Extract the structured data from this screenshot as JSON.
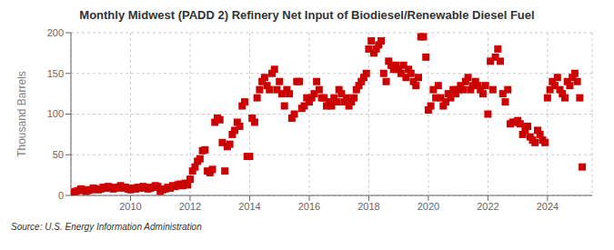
{
  "chart_data": {
    "type": "scatter",
    "title": "Monthly Midwest (PADD 2) Refinery Net Input of Biodiesel/Renewable Diesel Fuel",
    "ylabel": "Thousand Barrels",
    "annotations": [
      "Source: U.S. Energy Information Administration"
    ],
    "color": "#cc0000",
    "marker": "square",
    "grid": true,
    "xlim": [
      2008.0,
      2025.5
    ],
    "xticks": [
      2010,
      2012,
      2014,
      2016,
      2018,
      2020,
      2022,
      2024
    ],
    "ylim": [
      0,
      200
    ],
    "yticks": [
      0,
      50,
      100,
      150,
      200
    ],
    "x": [
      2008.0,
      2008.083,
      2008.167,
      2008.25,
      2008.333,
      2008.417,
      2008.5,
      2008.583,
      2008.667,
      2008.75,
      2008.833,
      2008.917,
      2009.0,
      2009.083,
      2009.167,
      2009.25,
      2009.333,
      2009.417,
      2009.5,
      2009.583,
      2009.667,
      2009.75,
      2009.833,
      2009.917,
      2010.0,
      2010.083,
      2010.167,
      2010.25,
      2010.333,
      2010.417,
      2010.5,
      2010.583,
      2010.667,
      2010.75,
      2010.833,
      2010.917,
      2011.0,
      2011.083,
      2011.167,
      2011.25,
      2011.333,
      2011.417,
      2011.5,
      2011.583,
      2011.667,
      2011.75,
      2011.833,
      2011.917,
      2012.0,
      2012.083,
      2012.167,
      2012.25,
      2012.333,
      2012.417,
      2012.5,
      2012.583,
      2012.667,
      2012.75,
      2012.833,
      2012.917,
      2013.0,
      2013.083,
      2013.167,
      2013.25,
      2013.333,
      2013.417,
      2013.5,
      2013.583,
      2013.667,
      2013.75,
      2013.833,
      2013.917,
      2014.0,
      2014.083,
      2014.167,
      2014.25,
      2014.333,
      2014.417,
      2014.5,
      2014.583,
      2014.667,
      2014.75,
      2014.833,
      2014.917,
      2015.0,
      2015.083,
      2015.167,
      2015.25,
      2015.333,
      2015.417,
      2015.5,
      2015.583,
      2015.667,
      2015.75,
      2015.833,
      2015.917,
      2016.0,
      2016.083,
      2016.167,
      2016.25,
      2016.333,
      2016.417,
      2016.5,
      2016.583,
      2016.667,
      2016.75,
      2016.833,
      2016.917,
      2017.0,
      2017.083,
      2017.167,
      2017.25,
      2017.333,
      2017.417,
      2017.5,
      2017.583,
      2017.667,
      2017.75,
      2017.833,
      2017.917,
      2018.0,
      2018.083,
      2018.167,
      2018.25,
      2018.333,
      2018.417,
      2018.5,
      2018.583,
      2018.667,
      2018.75,
      2018.833,
      2018.917,
      2019.0,
      2019.083,
      2019.167,
      2019.25,
      2019.333,
      2019.417,
      2019.5,
      2019.583,
      2019.667,
      2019.75,
      2019.833,
      2019.917,
      2020.0,
      2020.083,
      2020.167,
      2020.25,
      2020.333,
      2020.417,
      2020.5,
      2020.583,
      2020.667,
      2020.75,
      2020.833,
      2020.917,
      2021.0,
      2021.083,
      2021.167,
      2021.25,
      2021.333,
      2021.417,
      2021.5,
      2021.583,
      2021.667,
      2021.75,
      2021.833,
      2021.917,
      2022.0,
      2022.083,
      2022.167,
      2022.25,
      2022.333,
      2022.417,
      2022.5,
      2022.583,
      2022.667,
      2022.75,
      2022.833,
      2022.917,
      2023.0,
      2023.083,
      2023.167,
      2023.25,
      2023.333,
      2023.417,
      2023.5,
      2023.583,
      2023.667,
      2023.75,
      2023.833,
      2023.917,
      2024.0,
      2024.083,
      2024.167,
      2024.25,
      2024.333,
      2024.417,
      2024.5,
      2024.583,
      2024.667,
      2024.75,
      2024.833,
      2024.917,
      2025.0,
      2025.083,
      2025.167
    ],
    "values": [
      2,
      4,
      5,
      6,
      8,
      7,
      5,
      6,
      7,
      9,
      8,
      7,
      8,
      10,
      9,
      11,
      10,
      8,
      9,
      10,
      12,
      9,
      10,
      8,
      7,
      9,
      8,
      10,
      9,
      11,
      10,
      8,
      9,
      10,
      12,
      11,
      5,
      7,
      8,
      10,
      9,
      12,
      11,
      13,
      14,
      12,
      15,
      13,
      20,
      30,
      35,
      42,
      45,
      55,
      56,
      30,
      28,
      32,
      90,
      95,
      93,
      65,
      30,
      60,
      63,
      75,
      80,
      90,
      85,
      110,
      115,
      48,
      48,
      95,
      90,
      120,
      130,
      140,
      145,
      135,
      130,
      150,
      155,
      130,
      140,
      125,
      110,
      130,
      125,
      95,
      100,
      140,
      140,
      107,
      110,
      120,
      115,
      120,
      125,
      140,
      130,
      120,
      120,
      110,
      115,
      110,
      120,
      115,
      130,
      125,
      115,
      120,
      110,
      115,
      120,
      130,
      135,
      140,
      145,
      150,
      180,
      190,
      175,
      180,
      185,
      190,
      150,
      140,
      165,
      160,
      155,
      160,
      155,
      150,
      160,
      145,
      155,
      150,
      140,
      135,
      145,
      195,
      195,
      170,
      105,
      110,
      130,
      120,
      135,
      120,
      110,
      115,
      125,
      120,
      130,
      125,
      130,
      135,
      130,
      140,
      145,
      130,
      135,
      140,
      135,
      130,
      125,
      135,
      100,
      165,
      130,
      170,
      180,
      165,
      125,
      115,
      130,
      88,
      90,
      90,
      92,
      88,
      75,
      80,
      85,
      72,
      68,
      65,
      80,
      75,
      68,
      65,
      120,
      130,
      140,
      135,
      145,
      130,
      125,
      120,
      140,
      135,
      145,
      150,
      140,
      120,
      35
    ]
  }
}
